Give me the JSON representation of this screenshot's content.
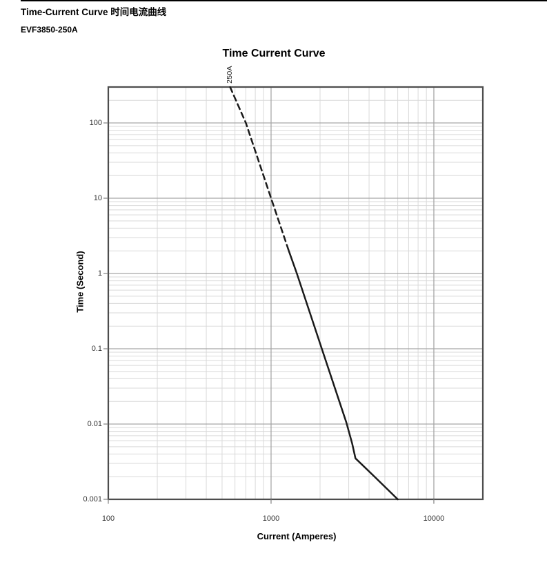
{
  "document": {
    "heading": "Time-Current Curve 时间电流曲线",
    "subheading": "EVF3850-250A"
  },
  "chart_data": {
    "type": "line",
    "title": "Time Current Curve",
    "xlabel": "Current (Amperes)",
    "ylabel": "Time (Second)",
    "x_scale": "log",
    "y_scale": "log",
    "xlim": [
      100,
      20000
    ],
    "ylim": [
      0.001,
      300
    ],
    "grid": {
      "minor": true,
      "major": true
    },
    "legend": "none",
    "x_ticks": [
      {
        "value": 100,
        "label": "100"
      },
      {
        "value": 1000,
        "label": "1000"
      },
      {
        "value": 10000,
        "label": "10000"
      }
    ],
    "y_ticks": [
      {
        "value": 100,
        "label": "100"
      },
      {
        "value": 10,
        "label": "10"
      },
      {
        "value": 1,
        "label": "1"
      },
      {
        "value": 0.1,
        "label": "0.1"
      },
      {
        "value": 0.01,
        "label": "0.01"
      },
      {
        "value": 0.001,
        "label": "0.001"
      }
    ],
    "series": [
      {
        "name": "250A",
        "curve_label": "250A",
        "segments": [
          {
            "style": "dashed",
            "points": [
              [
                560,
                300
              ],
              [
                700,
                100
              ],
              [
                1000,
                10
              ],
              [
                1285,
                2.0
              ]
            ]
          },
          {
            "style": "solid",
            "points": [
              [
                1285,
                2.0
              ],
              [
                1440,
                1
              ],
              [
                2050,
                0.1
              ],
              [
                2900,
                0.0105
              ],
              [
                3150,
                0.0055
              ],
              [
                3300,
                0.0035
              ],
              [
                3700,
                0.00276
              ],
              [
                4300,
                0.00202
              ],
              [
                5100,
                0.00141
              ],
              [
                6000,
                0.001
              ]
            ]
          }
        ]
      }
    ],
    "colors": {
      "curve": "#1a1a1a",
      "grid_minor": "#d9d9d9",
      "grid_major": "#a6a6a6",
      "axis_border": "#4d4d4d",
      "tick_mark": "#808080",
      "tick_text": "#333333",
      "text": "#000000"
    }
  }
}
